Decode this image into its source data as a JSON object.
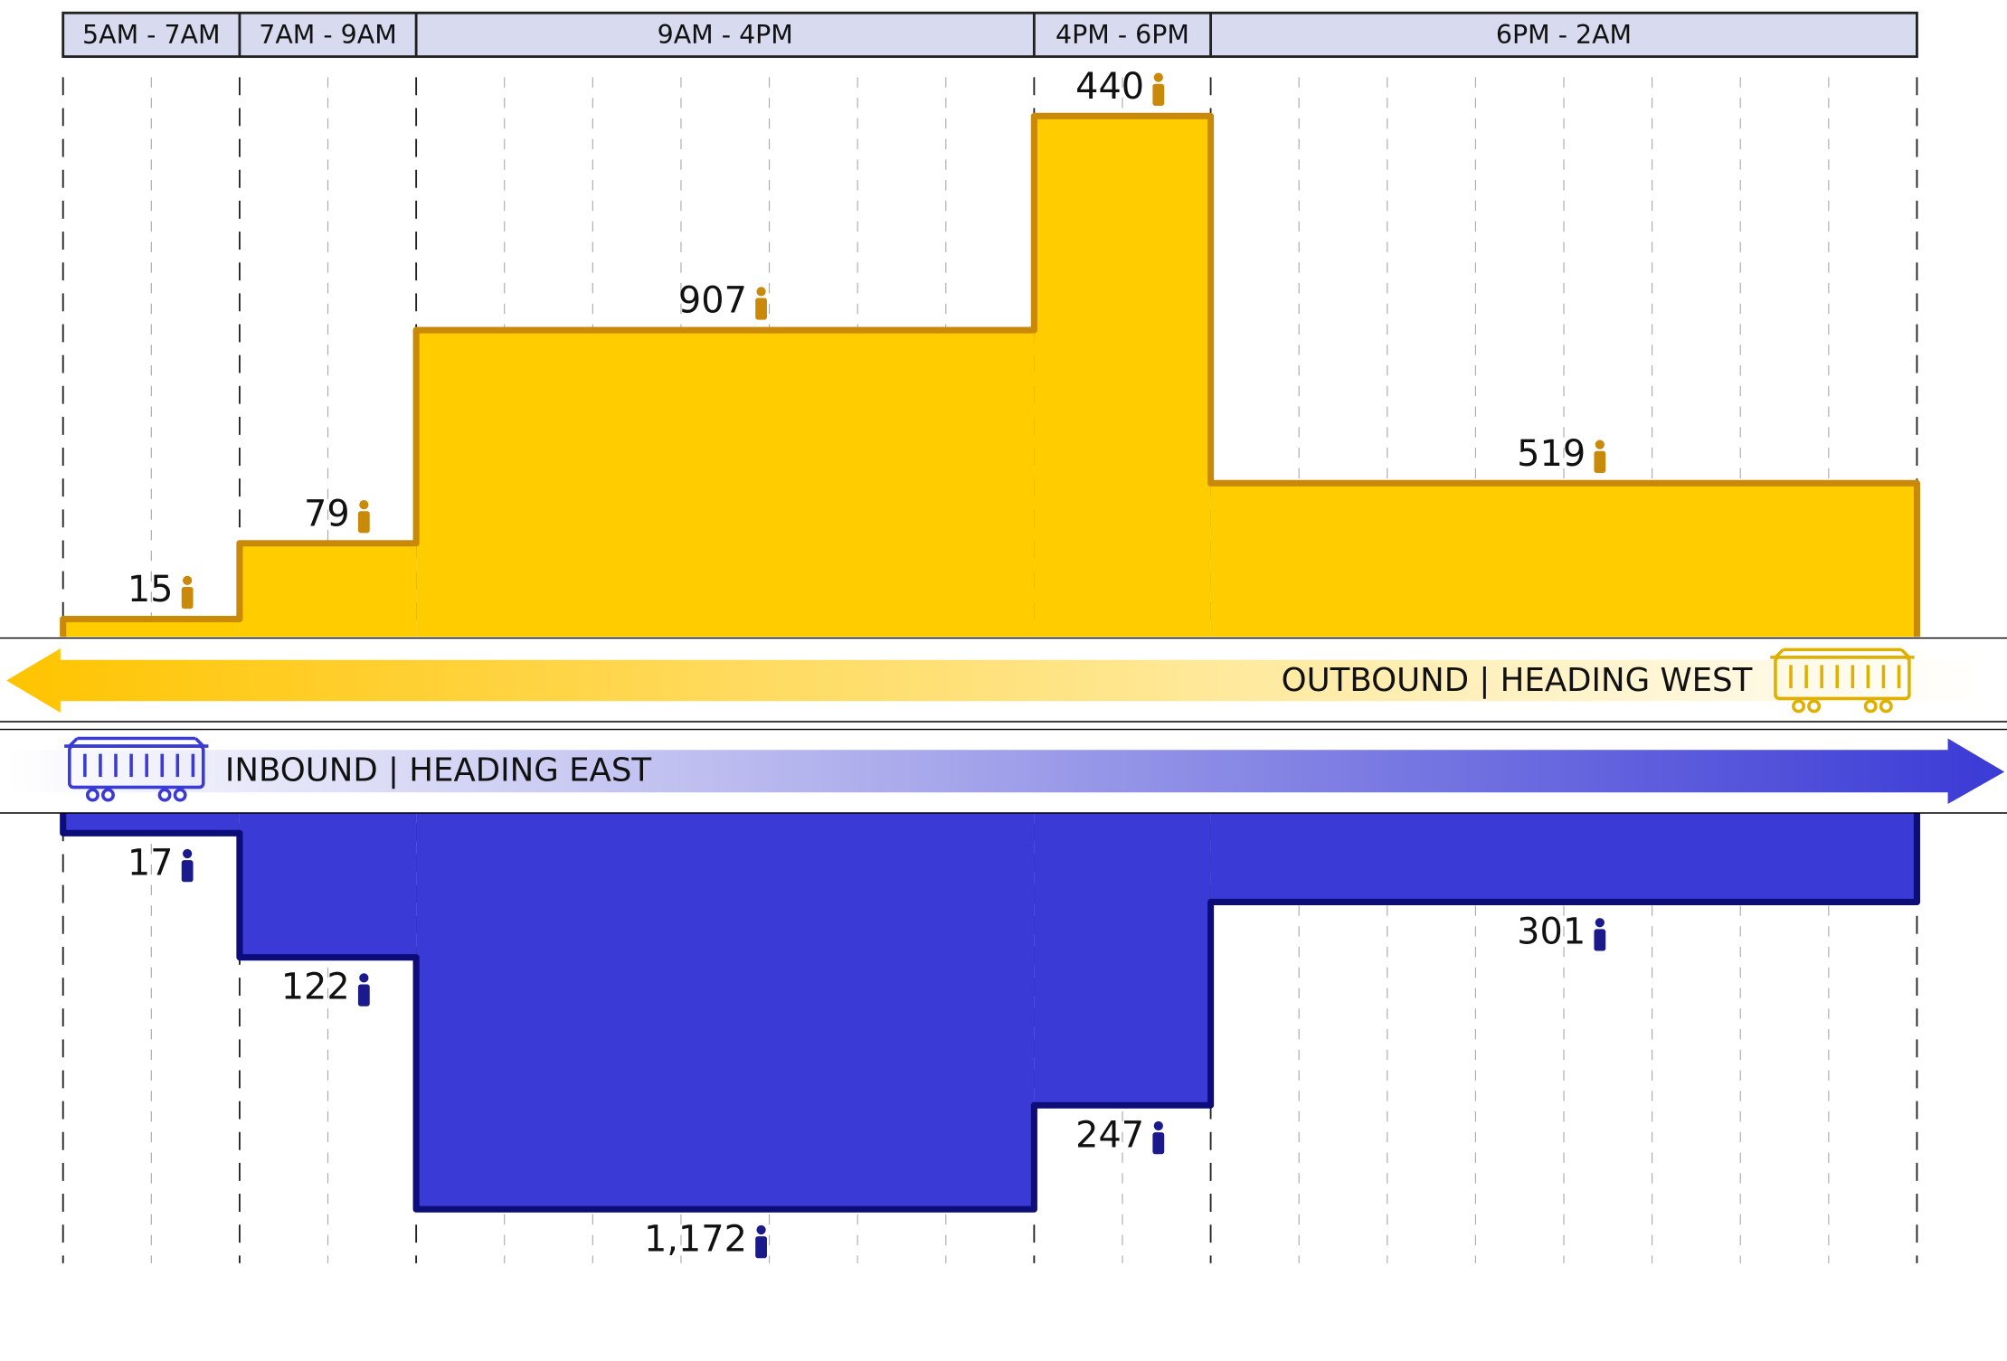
{
  "chart_data": {
    "type": "step-area",
    "categories": [
      "5AM - 7AM",
      "7AM - 9AM",
      "9AM - 4PM",
      "4PM - 6PM",
      "6PM - 2AM"
    ],
    "series": [
      {
        "name": "OUTBOUND | HEADING WEST",
        "color": "#ffcc00",
        "values": [
          15,
          79,
          907,
          440,
          519
        ]
      },
      {
        "name": "INBOUND | HEADING EAST",
        "color": "#3a3ad6",
        "values": [
          17,
          122,
          1172,
          247,
          301
        ],
        "value_labels": [
          "17",
          "122",
          "1,172",
          "247",
          "301"
        ]
      }
    ]
  }
}
